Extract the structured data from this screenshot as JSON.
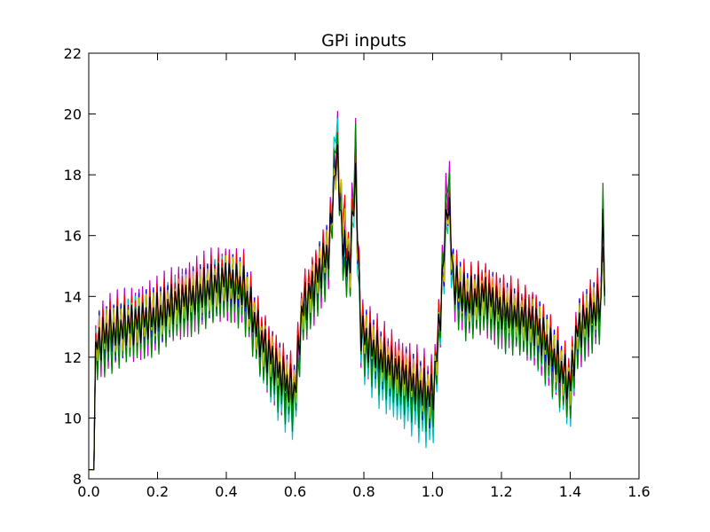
{
  "chart_data": {
    "type": "line",
    "title": "GPi inputs",
    "xlabel": "",
    "ylabel": "",
    "xlim": [
      0.0,
      1.6
    ],
    "ylim": [
      8,
      22
    ],
    "xticks": [
      "0.0",
      "0.2",
      "0.4",
      "0.6",
      "0.8",
      "1.0",
      "1.2",
      "1.4",
      "1.6"
    ],
    "yticks": [
      "8",
      "10",
      "12",
      "14",
      "16",
      "18",
      "20",
      "22"
    ],
    "grid": false,
    "legend": "none",
    "series": [
      {
        "color": "#bf00bf",
        "offset": 0.0,
        "amplitude": 2.1,
        "x": [
          0.0,
          0.015,
          0.02,
          0.025,
          0.05,
          0.1,
          0.15,
          0.2,
          0.25,
          0.3,
          0.35,
          0.4,
          0.45,
          0.5,
          0.55,
          0.58,
          0.6,
          0.62,
          0.65,
          0.7,
          0.72,
          0.74,
          0.76,
          0.775,
          0.79,
          0.8,
          0.85,
          0.9,
          0.95,
          1.0,
          1.02,
          1.045,
          1.06,
          1.1,
          1.15,
          1.2,
          1.25,
          1.3,
          1.35,
          1.38,
          1.4,
          1.42,
          1.45,
          1.49,
          1.495,
          1.5
        ],
        "y": [
          8.3,
          8.3,
          12.0,
          12.5,
          12.8,
          13.0,
          13.2,
          13.4,
          13.8,
          14.0,
          14.3,
          14.5,
          14.3,
          12.5,
          11.5,
          11.0,
          10.8,
          13.5,
          14.2,
          15.5,
          19.5,
          15.5,
          15.0,
          19.3,
          13.0,
          12.7,
          12.0,
          11.5,
          11.2,
          10.8,
          13.0,
          18.4,
          14.5,
          13.8,
          14.0,
          13.5,
          13.3,
          13.0,
          12.0,
          11.4,
          11.0,
          12.8,
          13.2,
          13.8,
          18.6,
          14.0
        ]
      },
      {
        "color": "#00bfbf",
        "offset": -0.25,
        "amplitude": 1.6,
        "x": [
          0.0,
          0.015,
          0.02,
          0.025,
          0.05,
          0.1,
          0.15,
          0.2,
          0.25,
          0.3,
          0.35,
          0.4,
          0.45,
          0.5,
          0.55,
          0.58,
          0.6,
          0.62,
          0.65,
          0.7,
          0.72,
          0.74,
          0.76,
          0.775,
          0.79,
          0.8,
          0.85,
          0.9,
          0.95,
          1.0,
          1.02,
          1.045,
          1.06,
          1.1,
          1.15,
          1.2,
          1.25,
          1.3,
          1.35,
          1.38,
          1.4,
          1.42,
          1.45,
          1.49,
          1.495,
          1.5
        ],
        "y": [
          8.3,
          8.3,
          12.0,
          12.4,
          12.6,
          12.9,
          13.1,
          13.3,
          13.7,
          13.9,
          14.2,
          14.4,
          14.1,
          12.2,
          11.0,
          10.5,
          10.3,
          13.4,
          14.1,
          15.4,
          20.1,
          15.4,
          14.8,
          18.0,
          12.6,
          12.2,
          11.3,
          10.8,
          10.4,
          9.9,
          12.8,
          17.0,
          14.3,
          13.7,
          13.9,
          13.3,
          13.1,
          12.7,
          11.7,
          11.0,
          10.5,
          12.6,
          13.1,
          13.6,
          16.0,
          13.8
        ]
      },
      {
        "color": "#0000ff",
        "offset": -0.1,
        "amplitude": 1.5,
        "x": [
          0.0,
          0.015,
          0.02,
          0.025,
          0.05,
          0.1,
          0.15,
          0.2,
          0.25,
          0.3,
          0.35,
          0.4,
          0.45,
          0.5,
          0.55,
          0.58,
          0.6,
          0.62,
          0.65,
          0.7,
          0.72,
          0.74,
          0.76,
          0.775,
          0.79,
          0.8,
          0.85,
          0.9,
          0.95,
          1.0,
          1.02,
          1.045,
          1.06,
          1.1,
          1.15,
          1.2,
          1.25,
          1.3,
          1.35,
          1.38,
          1.4,
          1.42,
          1.45,
          1.49,
          1.495,
          1.5
        ],
        "y": [
          8.3,
          8.3,
          12.0,
          12.5,
          12.7,
          13.0,
          13.2,
          13.4,
          13.8,
          14.0,
          14.3,
          14.5,
          14.3,
          12.6,
          11.6,
          11.1,
          10.9,
          13.6,
          14.3,
          15.6,
          19.0,
          15.6,
          15.0,
          18.2,
          13.0,
          12.7,
          12.0,
          11.5,
          11.1,
          10.6,
          13.1,
          17.2,
          14.5,
          13.9,
          14.1,
          13.6,
          13.4,
          13.1,
          12.1,
          11.5,
          11.0,
          12.9,
          13.3,
          13.8,
          16.5,
          14.0
        ]
      },
      {
        "color": "#ff0000",
        "offset": 0.15,
        "amplitude": 1.3,
        "x": [
          0.0,
          0.015,
          0.02,
          0.025,
          0.05,
          0.1,
          0.15,
          0.2,
          0.25,
          0.3,
          0.35,
          0.4,
          0.45,
          0.5,
          0.55,
          0.58,
          0.6,
          0.62,
          0.65,
          0.7,
          0.72,
          0.74,
          0.76,
          0.775,
          0.79,
          0.8,
          0.85,
          0.9,
          0.95,
          1.0,
          1.02,
          1.045,
          1.06,
          1.1,
          1.15,
          1.2,
          1.25,
          1.3,
          1.35,
          1.38,
          1.4,
          1.42,
          1.45,
          1.49,
          1.495,
          1.5
        ],
        "y": [
          8.3,
          8.3,
          12.1,
          12.6,
          12.9,
          13.1,
          13.3,
          13.5,
          13.9,
          14.1,
          14.4,
          14.7,
          14.5,
          12.8,
          11.8,
          11.3,
          11.1,
          13.8,
          14.5,
          15.8,
          18.8,
          16.8,
          15.2,
          18.5,
          13.2,
          12.9,
          12.2,
          11.7,
          11.3,
          10.9,
          13.3,
          17.5,
          14.7,
          14.1,
          14.3,
          13.8,
          13.6,
          13.3,
          12.3,
          11.7,
          11.3,
          13.0,
          13.5,
          14.0,
          16.3,
          14.2
        ]
      },
      {
        "color": "#008000",
        "offset": -0.35,
        "amplitude": 1.4,
        "x": [
          0.0,
          0.015,
          0.02,
          0.025,
          0.05,
          0.1,
          0.15,
          0.2,
          0.25,
          0.3,
          0.35,
          0.4,
          0.45,
          0.5,
          0.55,
          0.58,
          0.6,
          0.62,
          0.65,
          0.7,
          0.72,
          0.74,
          0.76,
          0.775,
          0.79,
          0.8,
          0.85,
          0.9,
          0.95,
          1.0,
          1.02,
          1.045,
          1.06,
          1.1,
          1.15,
          1.2,
          1.25,
          1.3,
          1.35,
          1.38,
          1.4,
          1.42,
          1.45,
          1.49,
          1.495,
          1.5
        ],
        "y": [
          8.3,
          8.3,
          11.8,
          12.2,
          12.4,
          12.7,
          12.9,
          13.1,
          13.5,
          13.7,
          14.0,
          14.2,
          13.9,
          12.2,
          11.2,
          10.7,
          10.5,
          13.2,
          13.9,
          15.2,
          19.7,
          15.0,
          14.7,
          19.3,
          12.8,
          12.4,
          11.7,
          11.2,
          10.8,
          10.4,
          12.8,
          18.4,
          14.2,
          13.5,
          13.7,
          13.2,
          13.0,
          12.7,
          11.7,
          11.1,
          10.7,
          12.5,
          13.0,
          13.5,
          18.6,
          13.7
        ]
      },
      {
        "color": "#bfbf00",
        "offset": 0.05,
        "amplitude": 1.1,
        "x": [
          0.0,
          0.015,
          0.02,
          0.025,
          0.05,
          0.1,
          0.15,
          0.2,
          0.25,
          0.3,
          0.35,
          0.4,
          0.45,
          0.5,
          0.55,
          0.58,
          0.6,
          0.62,
          0.65,
          0.7,
          0.72,
          0.74,
          0.76,
          0.775,
          0.79,
          0.8,
          0.85,
          0.9,
          0.95,
          1.0,
          1.02,
          1.045,
          1.06,
          1.1,
          1.15,
          1.2,
          1.25,
          1.3,
          1.35,
          1.38,
          1.4,
          1.42,
          1.45,
          1.49,
          1.495,
          1.5
        ],
        "y": [
          8.3,
          8.3,
          12.0,
          12.5,
          12.8,
          13.0,
          13.2,
          13.4,
          13.8,
          14.0,
          14.3,
          14.6,
          14.3,
          12.6,
          11.6,
          11.1,
          10.9,
          13.6,
          14.3,
          15.6,
          18.5,
          16.7,
          15.0,
          18.0,
          13.0,
          12.7,
          12.0,
          11.5,
          11.1,
          10.7,
          13.1,
          17.0,
          14.5,
          13.9,
          14.1,
          13.6,
          13.4,
          13.1,
          12.1,
          11.5,
          11.1,
          12.9,
          13.3,
          13.8,
          16.0,
          14.0
        ]
      },
      {
        "color": "#000000",
        "offset": 0.0,
        "amplitude": 1.0,
        "x": [
          0.0,
          0.015,
          0.02,
          0.025,
          0.05,
          0.1,
          0.15,
          0.2,
          0.25,
          0.3,
          0.35,
          0.4,
          0.45,
          0.5,
          0.55,
          0.58,
          0.6,
          0.62,
          0.65,
          0.7,
          0.72,
          0.74,
          0.76,
          0.775,
          0.79,
          0.8,
          0.85,
          0.9,
          0.95,
          1.0,
          1.02,
          1.045,
          1.06,
          1.1,
          1.15,
          1.2,
          1.25,
          1.3,
          1.35,
          1.38,
          1.4,
          1.42,
          1.45,
          1.49,
          1.495,
          1.5
        ],
        "y": [
          8.3,
          8.3,
          12.0,
          12.5,
          12.8,
          13.0,
          13.2,
          13.4,
          13.8,
          14.0,
          14.3,
          14.6,
          14.3,
          12.6,
          11.6,
          11.1,
          10.9,
          13.6,
          14.3,
          15.6,
          18.8,
          15.6,
          15.0,
          18.3,
          13.0,
          12.7,
          12.0,
          11.5,
          11.1,
          10.7,
          13.1,
          17.5,
          14.5,
          13.9,
          14.1,
          13.6,
          13.4,
          13.1,
          12.1,
          11.5,
          11.1,
          12.9,
          13.3,
          13.8,
          17.5,
          14.0
        ]
      }
    ],
    "oscillation_period": 0.0105
  }
}
